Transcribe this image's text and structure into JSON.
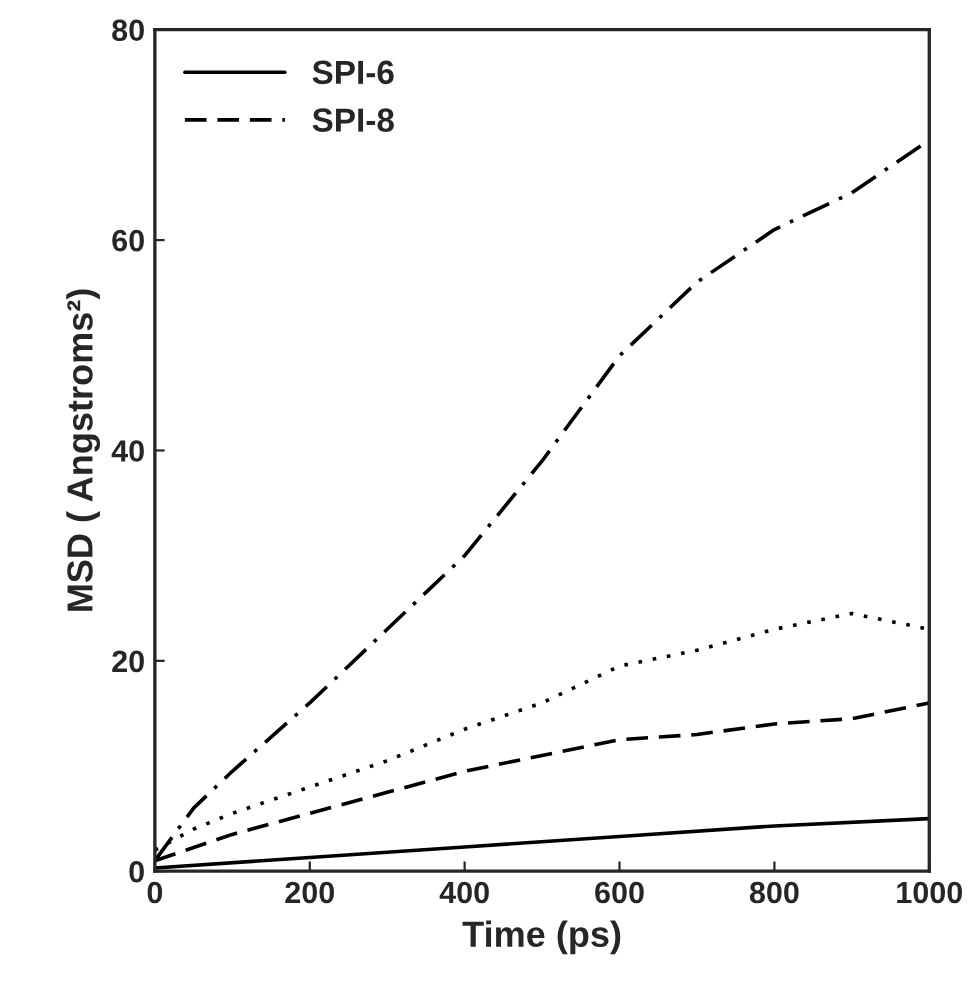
{
  "chart_data": {
    "type": "line",
    "xlabel": "Time (ps)",
    "ylabel": "MSD ( Angstroms²)",
    "xlim": [
      0,
      1000
    ],
    "xticks": [
      0,
      200,
      400,
      600,
      800,
      1000
    ],
    "ylim": [
      0,
      80
    ],
    "yticks": [
      0,
      20,
      40,
      60,
      80
    ],
    "grid": false,
    "legend": "top left",
    "marker": "none",
    "series": [
      {
        "name": "SPI-6",
        "color": "#000000",
        "line_style": "solid",
        "x": [
          0,
          200,
          400,
          600,
          800,
          1000
        ],
        "values": [
          0.3,
          1.3,
          2.3,
          3.3,
          4.3,
          5
        ]
      },
      {
        "name": "SPI-8",
        "color": "#000000",
        "line_style": "dashed",
        "x": [
          0,
          100,
          200,
          300,
          400,
          500,
          600,
          700,
          800,
          900,
          1000
        ],
        "values": [
          1,
          3.5,
          5.5,
          7.5,
          9.5,
          11,
          12.5,
          13,
          14,
          14.5,
          16
        ]
      },
      {
        "color": "#000000",
        "line_style": "dotted",
        "x": [
          0,
          50,
          100,
          200,
          300,
          400,
          500,
          600,
          700,
          800,
          900,
          1000
        ],
        "values": [
          2,
          4,
          5.5,
          8,
          10.5,
          13.5,
          16,
          19.5,
          21,
          23,
          24.5,
          23
        ]
      },
      {
        "color": "#000000",
        "line_style": "dashdot",
        "x": [
          0,
          50,
          100,
          200,
          300,
          400,
          500,
          600,
          700,
          800,
          900,
          1000
        ],
        "values": [
          1,
          6,
          9.5,
          16,
          23,
          30,
          39,
          49,
          56,
          61,
          64.5,
          69.5
        ]
      }
    ]
  }
}
